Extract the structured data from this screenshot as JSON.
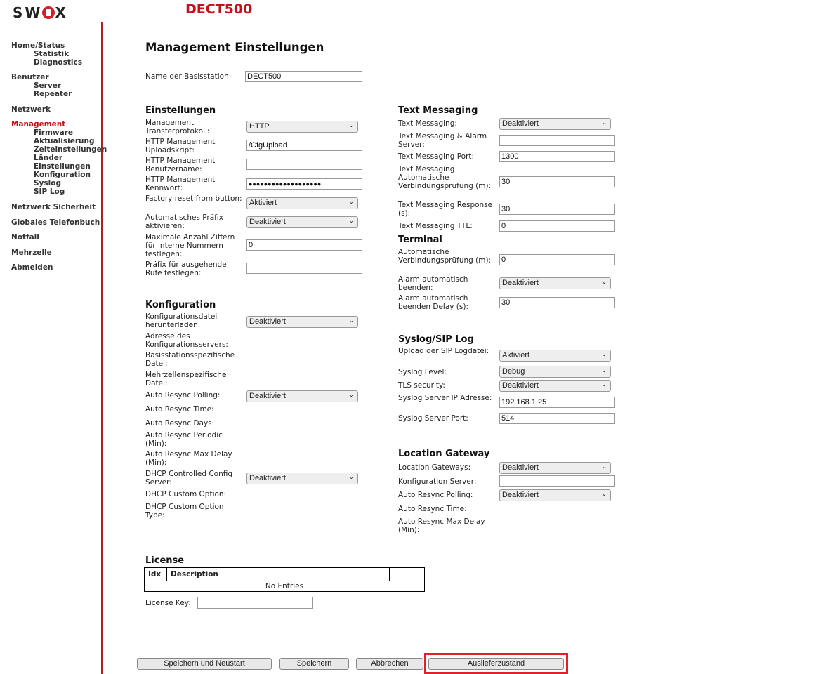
{
  "header": {
    "logo_text": "SWYX",
    "device": "DECT500"
  },
  "nav": [
    {
      "label": "Home/Status",
      "sub": false
    },
    {
      "label": "Statistik",
      "sub": true
    },
    {
      "label": "Diagnostics",
      "sub": true
    },
    {
      "label": "Benutzer",
      "sub": false
    },
    {
      "label": "Server",
      "sub": true
    },
    {
      "label": "Repeater",
      "sub": true
    },
    {
      "label": "Netzwerk",
      "sub": false
    },
    {
      "label": "Management",
      "sub": false,
      "active": true
    },
    {
      "label": "Firmware",
      "sub": true
    },
    {
      "label": "Aktualisierung",
      "sub": true
    },
    {
      "label": "Zeiteinstellungen",
      "sub": true
    },
    {
      "label": "Länder",
      "sub": true
    },
    {
      "label": "Einstellungen",
      "sub": true
    },
    {
      "label": "Konfiguration",
      "sub": true
    },
    {
      "label": "Syslog",
      "sub": true
    },
    {
      "label": "SIP Log",
      "sub": true
    },
    {
      "label": "Netzwerk Sicherheit",
      "sub": false
    },
    {
      "label": "Globales Telefonbuch",
      "sub": false
    },
    {
      "label": "Notfall",
      "sub": false
    },
    {
      "label": "Mehrzelle",
      "sub": false
    },
    {
      "label": "Abmelden",
      "sub": false
    }
  ],
  "page_title": "Management Einstellungen",
  "base_name": {
    "label": "Name der Basisstation:",
    "value": "DECT500"
  },
  "headings": {
    "einstellungen": "Einstellungen",
    "konfiguration": "Konfiguration",
    "text_messaging": "Text Messaging",
    "terminal": "Terminal",
    "syslog": "Syslog/SIP Log",
    "location": "Location Gateway",
    "license": "License"
  },
  "left_rows": [
    {
      "label": "Management Transferprotokoll:",
      "type": "select",
      "value": "HTTP"
    },
    {
      "label": "HTTP Management Uploadskript:",
      "type": "input",
      "value": "/CfgUpload"
    },
    {
      "label": "HTTP Management Benutzername:",
      "type": "input",
      "value": ""
    },
    {
      "label": "HTTP Management Kennwort:",
      "type": "password",
      "value": "●●●●●●●●●●●●●●●●●●●"
    },
    {
      "label": "Factory reset from button:",
      "type": "select",
      "value": "Aktiviert"
    },
    {
      "label": "Automatisches Präfix aktivieren:",
      "type": "select",
      "value": "Deaktiviert"
    },
    {
      "label": "Maximale Anzahl Ziffern für interne Nummern festlegen:",
      "type": "input",
      "value": "0"
    },
    {
      "label": "Präfix für ausgehende Rufe festlegen:",
      "type": "input",
      "value": ""
    },
    {
      "label": "Konfigurationsdatei herunterladen:",
      "type": "select",
      "value": "Deaktiviert"
    },
    {
      "label": "Adresse des Konfigurationsservers:",
      "type": "none"
    },
    {
      "label": "Basisstationsspezifische Datei:",
      "type": "none"
    },
    {
      "label": "Mehrzellenspezifische Datei:",
      "type": "none"
    },
    {
      "label": "Auto Resync Polling:",
      "type": "select",
      "value": "Deaktiviert"
    },
    {
      "label": "Auto Resync Time:",
      "type": "none"
    },
    {
      "label": "Auto Resync Days:",
      "type": "none"
    },
    {
      "label": "Auto Resync Periodic (Min):",
      "type": "none"
    },
    {
      "label": "Auto Resync Max Delay (Min):",
      "type": "none"
    },
    {
      "label": "DHCP Controlled Config Server:",
      "type": "select",
      "value": "Deaktiviert"
    },
    {
      "label": "DHCP Custom Option:",
      "type": "none"
    },
    {
      "label": "DHCP Custom Option Type:",
      "type": "none"
    }
  ],
  "right_rows": [
    {
      "label": "Text Messaging:",
      "type": "select",
      "value": "Deaktiviert"
    },
    {
      "label": "Text Messaging & Alarm Server:",
      "type": "input",
      "value": ""
    },
    {
      "label": "Text Messaging Port:",
      "type": "input",
      "value": "1300"
    },
    {
      "label": "Text Messaging Automatische Verbindungsprüfung (m):",
      "type": "input",
      "value": "30"
    },
    {
      "label": "Text Messaging Response (s):",
      "type": "input",
      "value": "30"
    },
    {
      "label": "Text Messaging TTL:",
      "type": "input",
      "value": "0"
    },
    {
      "label": "Automatische Verbindungsprüfung (m):",
      "type": "input",
      "value": "0"
    },
    {
      "label": "Alarm automatisch beenden:",
      "type": "select",
      "value": "Deaktiviert"
    },
    {
      "label": "Alarm automatisch beenden Delay (s):",
      "type": "input",
      "value": "30"
    },
    {
      "label": "Upload der SIP Logdatei:",
      "type": "select",
      "value": "Aktiviert"
    },
    {
      "label": "Syslog Level:",
      "type": "select",
      "value": "Debug"
    },
    {
      "label": "TLS security:",
      "type": "select",
      "value": "Deaktiviert"
    },
    {
      "label": "Syslog Server IP Adresse:",
      "type": "input",
      "value": "192.168.1.25"
    },
    {
      "label": "Syslog Server Port:",
      "type": "input",
      "value": "514"
    },
    {
      "label": "Location Gateways:",
      "type": "select",
      "value": "Deaktiviert"
    },
    {
      "label": "Konfiguration Server:",
      "type": "input",
      "value": ""
    },
    {
      "label": "Auto Resync Polling:",
      "type": "select",
      "value": "Deaktiviert"
    },
    {
      "label": "Auto Resync Time:",
      "type": "none"
    },
    {
      "label": "Auto Resync Max Delay (Min):",
      "type": "none"
    }
  ],
  "license": {
    "col_idx": "Idx",
    "col_desc": "Description",
    "empty": "No Entries",
    "key_label": "License Key:",
    "key_value": ""
  },
  "buttons": {
    "save_restart": "Speichern und Neustart",
    "save": "Speichern",
    "cancel": "Abbrechen",
    "factory": "Auslieferzustand"
  },
  "colors": {
    "accent": "#c8101a",
    "highlight": "#e0202a"
  }
}
